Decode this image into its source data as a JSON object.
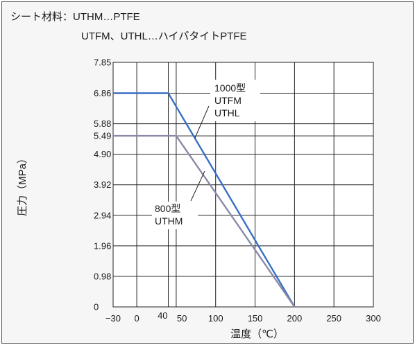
{
  "notes": {
    "line1": "シート材料：UTHM…PTFE",
    "line2": "UTFM、UTHL…ハイパタイトPTFE"
  },
  "chart_data": {
    "type": "line",
    "xlabel": "温度（℃）",
    "ylabel": "圧力（MPa）",
    "xlim": [
      -30,
      300
    ],
    "ylim": [
      0,
      7.85
    ],
    "x_ticks": [
      -30,
      0,
      40,
      50,
      100,
      150,
      200,
      250,
      300
    ],
    "x_tick_labels": [
      "−30",
      "0",
      "40",
      "50",
      "100",
      "150",
      "200",
      "250",
      "300"
    ],
    "y_ticks": [
      0,
      0.98,
      1.96,
      2.94,
      3.92,
      4.9,
      5.49,
      5.88,
      6.86,
      7.85
    ],
    "y_tick_labels": [
      "0",
      "0.98",
      "1.96",
      "2.94",
      "3.92",
      "4.90",
      "5.49",
      "5.88",
      "6.86",
      "7.85"
    ],
    "grid": true,
    "series": [
      {
        "name": "1000型 UTFM UTHL",
        "label_lines": [
          "1000型",
          "UTFM",
          "UTHL"
        ],
        "color": "#3a6fc4",
        "points": [
          [
            -30,
            6.86
          ],
          [
            40,
            6.86
          ],
          [
            200,
            0
          ]
        ]
      },
      {
        "name": "800型 UTHM",
        "label_lines": [
          "800型",
          "UTHM"
        ],
        "color": "#8a8aa8",
        "points": [
          [
            -30,
            5.49
          ],
          [
            50,
            5.49
          ],
          [
            200,
            0
          ]
        ]
      }
    ]
  }
}
